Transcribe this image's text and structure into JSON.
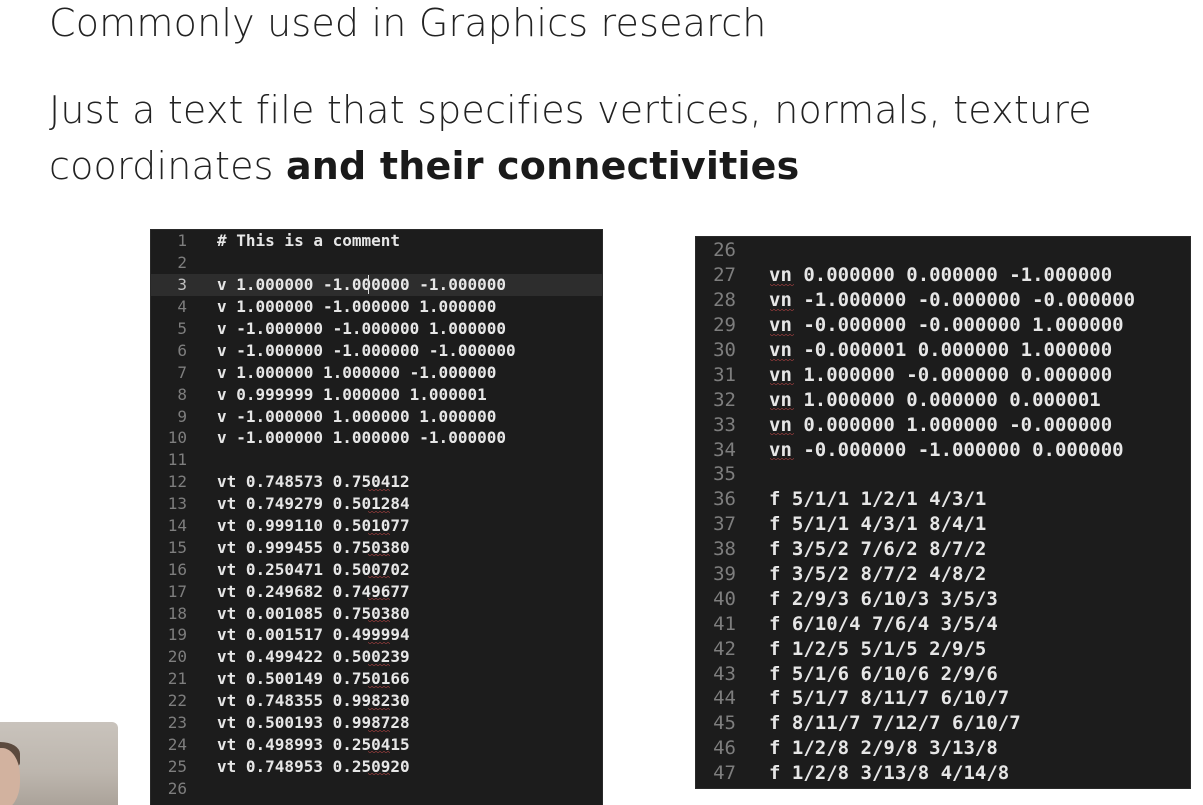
{
  "slide": {
    "line1": "Commonly used in Graphics research",
    "line2_regular": "Just a text file that specifies vertices, normals, texture coordinates ",
    "line2_bold": "and their connectivities"
  },
  "editor_left": {
    "lines": [
      {
        "num": "1",
        "text": "# This is a comment"
      },
      {
        "num": "2",
        "text": ""
      },
      {
        "num": "3",
        "text": "v 1.000000 -1.000000 -1.000000"
      },
      {
        "num": "4",
        "text": "v 1.000000 -1.000000 1.000000"
      },
      {
        "num": "5",
        "text": "v -1.000000 -1.000000 1.000000"
      },
      {
        "num": "6",
        "text": "v -1.000000 -1.000000 -1.000000"
      },
      {
        "num": "7",
        "text": "v 1.000000 1.000000 -1.000000"
      },
      {
        "num": "8",
        "text": "v 0.999999 1.000000 1.000001"
      },
      {
        "num": "9",
        "text": "v -1.000000 1.000000 1.000000"
      },
      {
        "num": "10",
        "text": "v -1.000000 1.000000 -1.000000"
      },
      {
        "num": "11",
        "text": ""
      },
      {
        "num": "12",
        "text": "vt 0.748573 0.750412"
      },
      {
        "num": "13",
        "text": "vt 0.749279 0.501284"
      },
      {
        "num": "14",
        "text": "vt 0.999110 0.501077"
      },
      {
        "num": "15",
        "text": "vt 0.999455 0.750380"
      },
      {
        "num": "16",
        "text": "vt 0.250471 0.500702"
      },
      {
        "num": "17",
        "text": "vt 0.249682 0.749677"
      },
      {
        "num": "18",
        "text": "vt 0.001085 0.750380"
      },
      {
        "num": "19",
        "text": "vt 0.001517 0.499994"
      },
      {
        "num": "20",
        "text": "vt 0.499422 0.500239"
      },
      {
        "num": "21",
        "text": "vt 0.500149 0.750166"
      },
      {
        "num": "22",
        "text": "vt 0.748355 0.998230"
      },
      {
        "num": "23",
        "text": "vt 0.500193 0.998728"
      },
      {
        "num": "24",
        "text": "vt 0.498993 0.250415"
      },
      {
        "num": "25",
        "text": "vt 0.748953 0.250920"
      },
      {
        "num": "26",
        "text": ""
      }
    ]
  },
  "editor_right": {
    "lines": [
      {
        "num": "26",
        "text": ""
      },
      {
        "num": "27",
        "text": "vn 0.000000 0.000000 -1.000000"
      },
      {
        "num": "28",
        "text": "vn -1.000000 -0.000000 -0.000000"
      },
      {
        "num": "29",
        "text": "vn -0.000000 -0.000000 1.000000"
      },
      {
        "num": "30",
        "text": "vn -0.000001 0.000000 1.000000"
      },
      {
        "num": "31",
        "text": "vn 1.000000 -0.000000 0.000000"
      },
      {
        "num": "32",
        "text": "vn 1.000000 0.000000 0.000001"
      },
      {
        "num": "33",
        "text": "vn 0.000000 1.000000 -0.000000"
      },
      {
        "num": "34",
        "text": "vn -0.000000 -1.000000 0.000000"
      },
      {
        "num": "35",
        "text": ""
      },
      {
        "num": "36",
        "text": "f 5/1/1 1/2/1 4/3/1"
      },
      {
        "num": "37",
        "text": "f 5/1/1 4/3/1 8/4/1"
      },
      {
        "num": "38",
        "text": "f 3/5/2 7/6/2 8/7/2"
      },
      {
        "num": "39",
        "text": "f 3/5/2 8/7/2 4/8/2"
      },
      {
        "num": "40",
        "text": "f 2/9/3 6/10/3 3/5/3"
      },
      {
        "num": "41",
        "text": "f 6/10/4 7/6/4 3/5/4"
      },
      {
        "num": "42",
        "text": "f 1/2/5 5/1/5 2/9/5"
      },
      {
        "num": "43",
        "text": "f 5/1/6 6/10/6 2/9/6"
      },
      {
        "num": "44",
        "text": "f 5/1/7 8/11/7 6/10/7"
      },
      {
        "num": "45",
        "text": "f 8/11/7 7/12/7 6/10/7"
      },
      {
        "num": "46",
        "text": "f 1/2/8 2/9/8 3/13/8"
      },
      {
        "num": "47",
        "text": "f 1/2/8 3/13/8 4/14/8"
      }
    ]
  }
}
